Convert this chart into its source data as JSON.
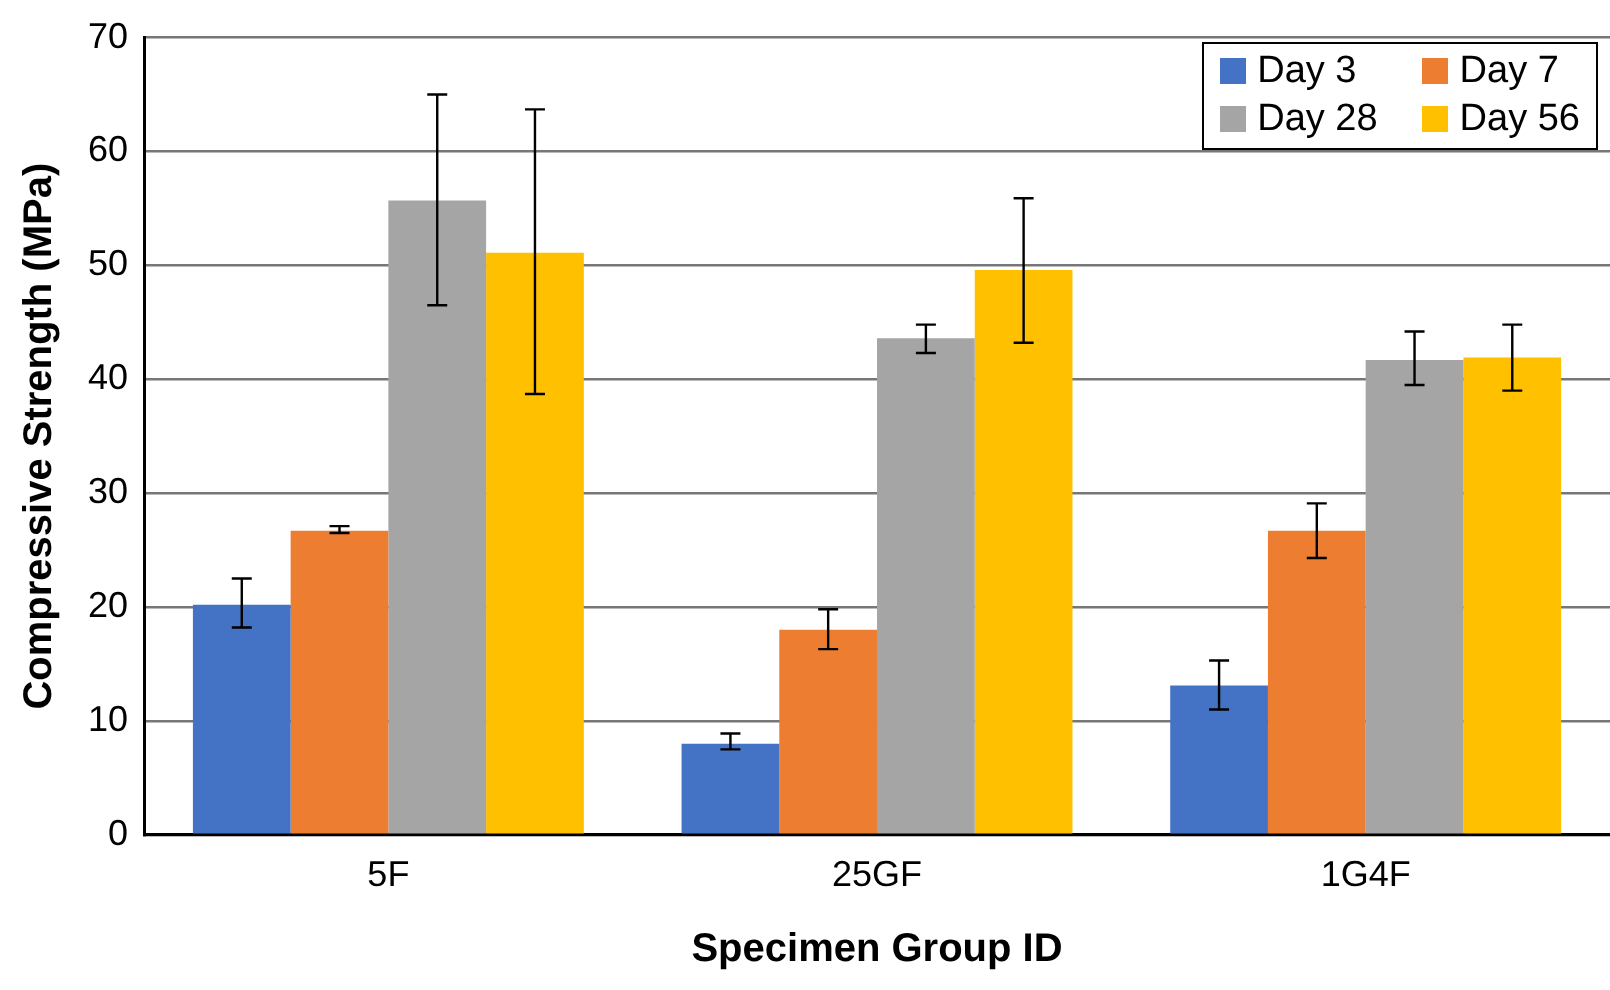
{
  "chart_data": {
    "type": "bar",
    "xlabel": "Specimen Group ID",
    "ylabel": "Compressive Strength (MPa)",
    "categories": [
      "5F",
      "25GF",
      "1G4F"
    ],
    "series": [
      {
        "name": "Day 3",
        "color": "#4472c4",
        "values": [
          20.2,
          8.0,
          13.1
        ],
        "errors": [
          [
            18.2,
            22.5
          ],
          [
            7.5,
            8.9
          ],
          [
            11.0,
            15.3
          ]
        ]
      },
      {
        "name": "Day 7",
        "color": "#ed7d31",
        "values": [
          26.7,
          18.0,
          26.7
        ],
        "errors": [
          [
            26.5,
            27.1
          ],
          [
            16.3,
            19.8
          ],
          [
            24.3,
            29.1
          ]
        ]
      },
      {
        "name": "Day 28",
        "color": "#a5a5a5",
        "values": [
          55.7,
          43.6,
          41.7
        ],
        "errors": [
          [
            46.5,
            65.0
          ],
          [
            42.3,
            44.8
          ],
          [
            39.5,
            44.2
          ]
        ]
      },
      {
        "name": "Day 56",
        "color": "#ffc000",
        "values": [
          51.1,
          49.6,
          41.9
        ],
        "errors": [
          [
            38.7,
            63.7
          ],
          [
            43.2,
            55.9
          ],
          [
            39.0,
            44.8
          ]
        ]
      }
    ],
    "ylim": [
      0,
      70
    ],
    "yticks": [
      0,
      10,
      20,
      30,
      40,
      50,
      60,
      70
    ],
    "grid": "y",
    "legend": "top right"
  }
}
